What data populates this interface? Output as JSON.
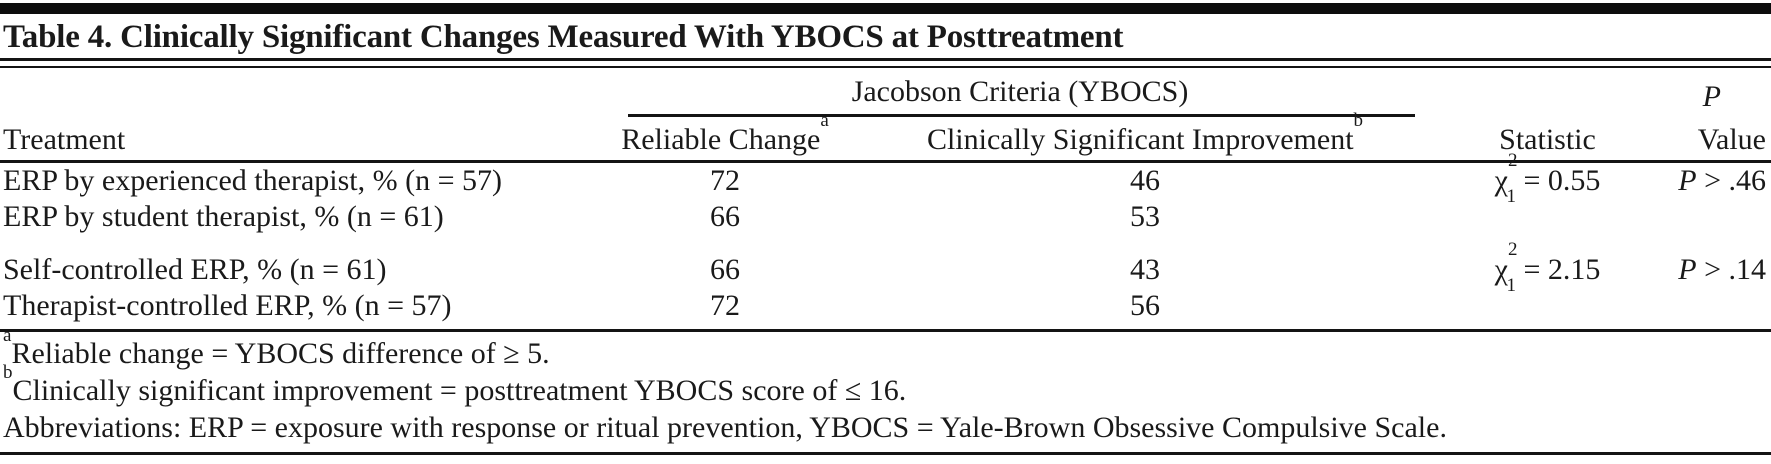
{
  "table": {
    "title": "Table 4. Clinically Significant Changes Measured With YBOCS at Posttreatment",
    "spanner_header": "Jacobson Criteria (YBOCS)",
    "columns": {
      "treatment": "Treatment",
      "reliable_change": "Reliable Change",
      "reliable_change_marker": "a",
      "csi": "Clinically Significant Improvement",
      "csi_marker": "b",
      "statistic": "Statistic",
      "p_line1": "P",
      "p_line2": "Value"
    },
    "rows": [
      {
        "treatment": "ERP by experienced therapist, % (n = 57)",
        "reliable_change": "72",
        "csi": "46",
        "stat_chi": "χ",
        "stat_sup": "2",
        "stat_sub": "1",
        "stat_eq": " = 0.55",
        "p_label": "P",
        "p_value": " > .46"
      },
      {
        "treatment": "ERP by student therapist, % (n = 61)",
        "reliable_change": "66",
        "csi": "53"
      },
      {
        "treatment": "Self-controlled ERP, % (n = 61)",
        "reliable_change": "66",
        "csi": "43",
        "stat_chi": "χ",
        "stat_sup": "2",
        "stat_sub": "1",
        "stat_eq": " = 2.15",
        "p_label": "P",
        "p_value": " > .14"
      },
      {
        "treatment": "Therapist-controlled ERP, % (n = 57)",
        "reliable_change": "72",
        "csi": "56"
      }
    ],
    "footnotes": [
      {
        "marker": "a",
        "text": "Reliable change = YBOCS difference of ≥ 5."
      },
      {
        "marker": "b",
        "text": "Clinically significant improvement = posttreatment YBOCS score of ≤ 16."
      },
      {
        "marker": "",
        "text": "Abbreviations: ERP = exposure with response or ritual prevention, YBOCS = Yale-Brown Obsessive Compulsive Scale."
      }
    ],
    "colors": {
      "text": "#1a1a1a",
      "rule": "#141414",
      "background": "#ffffff"
    }
  },
  "chart_data": {
    "type": "table",
    "title": "Table 4. Clinically Significant Changes Measured With YBOCS at Posttreatment",
    "columns": [
      "Treatment",
      "Reliable Change (%)",
      "Clinically Significant Improvement (%)",
      "Statistic",
      "P Value"
    ],
    "rows": [
      [
        "ERP by experienced therapist, % (n = 57)",
        72,
        46,
        "χ²₁ = 0.55",
        "P > .46"
      ],
      [
        "ERP by student therapist, % (n = 61)",
        66,
        53,
        "",
        ""
      ],
      [
        "Self-controlled ERP, % (n = 61)",
        66,
        43,
        "χ²₁ = 2.15",
        "P > .14"
      ],
      [
        "Therapist-controlled ERP, % (n = 57)",
        72,
        56,
        "",
        ""
      ]
    ]
  }
}
